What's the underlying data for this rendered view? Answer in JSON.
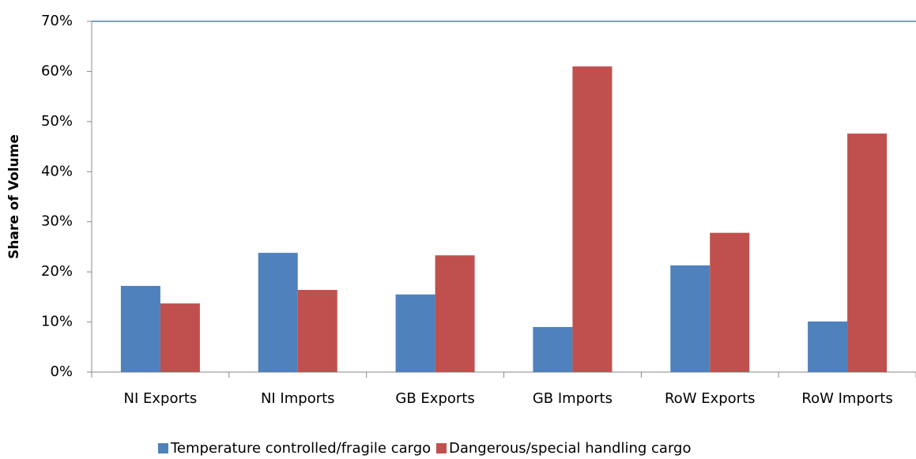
{
  "chart_data": {
    "type": "bar",
    "y_label": "Share of Volume",
    "categories": [
      "NI Exports",
      "NI Imports",
      "GB Exports",
      "GB Imports",
      "RoW Exports",
      "RoW Imports"
    ],
    "series": [
      {
        "name": "Temperature controlled/fragile cargo",
        "color": "#4f81bd",
        "values": [
          17.2,
          23.8,
          15.5,
          9.0,
          21.3,
          10.1
        ]
      },
      {
        "name": "Dangerous/special handling cargo",
        "color": "#c0504d",
        "values": [
          13.7,
          16.4,
          23.3,
          61.0,
          27.8,
          47.6
        ]
      }
    ],
    "ylim": [
      0,
      70
    ],
    "yticks": [
      {
        "value": 0,
        "label": "0%"
      },
      {
        "value": 10,
        "label": "10%"
      },
      {
        "value": 20,
        "label": "20%"
      },
      {
        "value": 30,
        "label": "30%"
      },
      {
        "value": 40,
        "label": "40%"
      },
      {
        "value": 50,
        "label": "50%"
      },
      {
        "value": 60,
        "label": "60%"
      },
      {
        "value": 70,
        "label": "70%"
      }
    ],
    "grid": false,
    "legend": "bottom"
  }
}
